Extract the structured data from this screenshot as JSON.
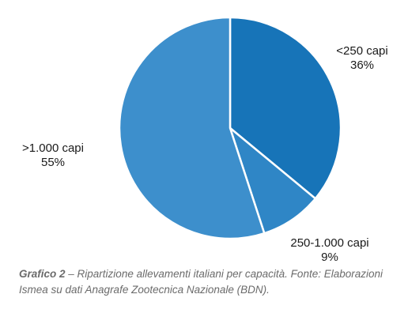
{
  "chart_data": {
    "type": "pie",
    "categories": [
      "<250 capi",
      "250-1.000 capi",
      ">1.000 capi"
    ],
    "values": [
      36,
      9,
      55
    ],
    "value_labels": [
      "36%",
      "9%",
      "55%"
    ],
    "colors": [
      "#1774b8",
      "#2f86c6",
      "#3d8fcc"
    ],
    "start_angle_deg": 0,
    "direction": "clockwise",
    "legend": "none"
  },
  "caption": {
    "number": "Grafico 2",
    "separator": " – ",
    "text": "Ripartizione allevamenti italiani per capacità. Fonte: Elaborazioni Ismea su dati Anagrafe Zootecnica Nazionale (BDN)."
  }
}
